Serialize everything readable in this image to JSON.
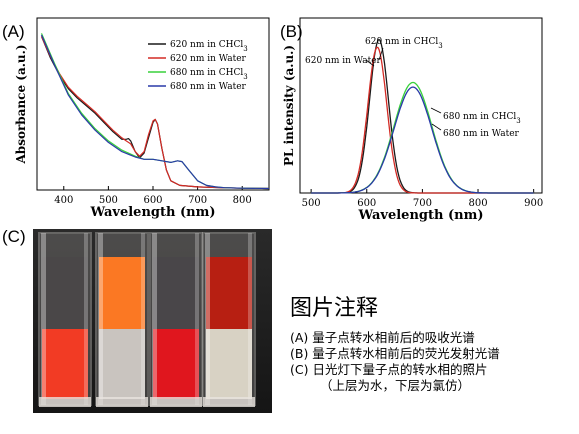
{
  "panel_labels": {
    "a": "(A)",
    "b": "(B)",
    "c": "(C)"
  },
  "colors": {
    "chcl3_620": "#1a1a1a",
    "water_620": "#d32b25",
    "chcl3_680": "#39d13b",
    "water_680": "#2a3aa8"
  },
  "chart_data": [
    {
      "type": "line",
      "panel": "(A)",
      "title": "",
      "xlabel": "Wavelength (nm)",
      "ylabel": "Absorbance (a.u.)",
      "xlim": [
        340,
        860
      ],
      "x_ticks": [
        400,
        500,
        600,
        700,
        800
      ],
      "y_ticks_labeled": false,
      "grid": false,
      "legend_position": "top-right",
      "series": [
        {
          "name": "620 nm in CHCl3",
          "legend_base": "620 nm in CHCl",
          "legend_sub": "3",
          "color": "#1a1a1a",
          "x": [
            350,
            370,
            390,
            410,
            430,
            450,
            470,
            490,
            510,
            530,
            540,
            545,
            550,
            560,
            570,
            580,
            590,
            600,
            605,
            610,
            620,
            630,
            640,
            660,
            700,
            750,
            800,
            860
          ],
          "y": [
            1.0,
            0.86,
            0.75,
            0.66,
            0.6,
            0.55,
            0.5,
            0.44,
            0.38,
            0.33,
            0.33,
            0.335,
            0.32,
            0.25,
            0.21,
            0.24,
            0.34,
            0.44,
            0.46,
            0.43,
            0.27,
            0.13,
            0.06,
            0.03,
            0.02,
            0.015,
            0.012,
            0.01
          ]
        },
        {
          "name": "620 nm in Water",
          "legend_base": "620 nm in Water",
          "legend_sub": "",
          "color": "#d32b25",
          "x": [
            350,
            370,
            390,
            410,
            430,
            450,
            470,
            490,
            510,
            530,
            540,
            545,
            550,
            560,
            570,
            580,
            590,
            600,
            605,
            610,
            620,
            630,
            640,
            660,
            700,
            750,
            800,
            860
          ],
          "y": [
            1.0,
            0.87,
            0.76,
            0.67,
            0.61,
            0.56,
            0.51,
            0.45,
            0.39,
            0.34,
            0.32,
            0.31,
            0.3,
            0.25,
            0.22,
            0.25,
            0.36,
            0.45,
            0.46,
            0.43,
            0.27,
            0.13,
            0.06,
            0.03,
            0.02,
            0.015,
            0.012,
            0.01
          ]
        },
        {
          "name": "680 nm in CHCl3",
          "legend_base": "680 nm in CHCl",
          "legend_sub": "3",
          "color": "#39d13b",
          "x": [
            350,
            380,
            410,
            440,
            470,
            500,
            530,
            560,
            580,
            600,
            620,
            640,
            655,
            665,
            680,
            700,
            720,
            740,
            760,
            800,
            860
          ],
          "y": [
            1.02,
            0.82,
            0.63,
            0.5,
            0.4,
            0.32,
            0.26,
            0.22,
            0.2,
            0.2,
            0.19,
            0.18,
            0.19,
            0.185,
            0.13,
            0.06,
            0.03,
            0.02,
            0.015,
            0.012,
            0.01
          ]
        },
        {
          "name": "680 nm in Water",
          "legend_base": "680 nm in Water",
          "legend_sub": "",
          "color": "#2a3aa8",
          "x": [
            350,
            380,
            410,
            440,
            470,
            500,
            530,
            560,
            580,
            600,
            620,
            640,
            655,
            665,
            680,
            700,
            720,
            740,
            760,
            800,
            860
          ],
          "y": [
            1.01,
            0.81,
            0.62,
            0.49,
            0.39,
            0.31,
            0.25,
            0.215,
            0.2,
            0.2,
            0.19,
            0.18,
            0.19,
            0.185,
            0.13,
            0.06,
            0.03,
            0.02,
            0.015,
            0.012,
            0.01
          ]
        }
      ]
    },
    {
      "type": "line",
      "panel": "(B)",
      "title": "",
      "xlabel": "Wavelength (nm)",
      "ylabel": "PL intensity (a.u.)",
      "xlim": [
        480,
        915
      ],
      "x_ticks": [
        500,
        600,
        700,
        800,
        900
      ],
      "y_ticks_labeled": false,
      "grid": false,
      "series": [
        {
          "name": "620 nm in CHCl3",
          "color": "#1a1a1a",
          "peak_nm": 622,
          "width_nm": 17,
          "peak_rel": 1.0
        },
        {
          "name": "620 nm in Water",
          "color": "#d32b25",
          "peak_nm": 619,
          "width_nm": 17,
          "peak_rel": 0.95
        },
        {
          "name": "680 nm in CHCl3",
          "color": "#39d13b",
          "peak_nm": 683,
          "width_nm": 34,
          "peak_rel": 0.72
        },
        {
          "name": "680 nm in Water",
          "color": "#2a3aa8",
          "peak_nm": 683,
          "width_nm": 34,
          "peak_rel": 0.69
        }
      ],
      "annotations": [
        {
          "text_base": "620 nm in CHCl",
          "text_sub": "3"
        },
        {
          "text_base": "620 nm in Water",
          "text_sub": ""
        },
        {
          "text_base": "680 nm in CHCl",
          "text_sub": "3"
        },
        {
          "text_base": "680 nm in Water",
          "text_sub": ""
        }
      ]
    }
  ],
  "photo": {
    "cuvettes": [
      {
        "top_color": "#4a4748",
        "bottom_color": "#f23b24"
      },
      {
        "top_color": "#fb7823",
        "bottom_color": "#c9c4bf"
      },
      {
        "top_color": "#494649",
        "bottom_color": "#e0161e"
      },
      {
        "top_color": "#b71f12",
        "bottom_color": "#d8d2c4"
      }
    ]
  },
  "caption": {
    "title": "图片注释",
    "lines": [
      "(A) 量子点转水相前后的吸收光谱",
      "(B) 量子点转水相前后的荧光发射光谱",
      "(C) 日光灯下量子点的转水相的照片"
    ],
    "note": "（上层为水，下层为氯仿）"
  }
}
